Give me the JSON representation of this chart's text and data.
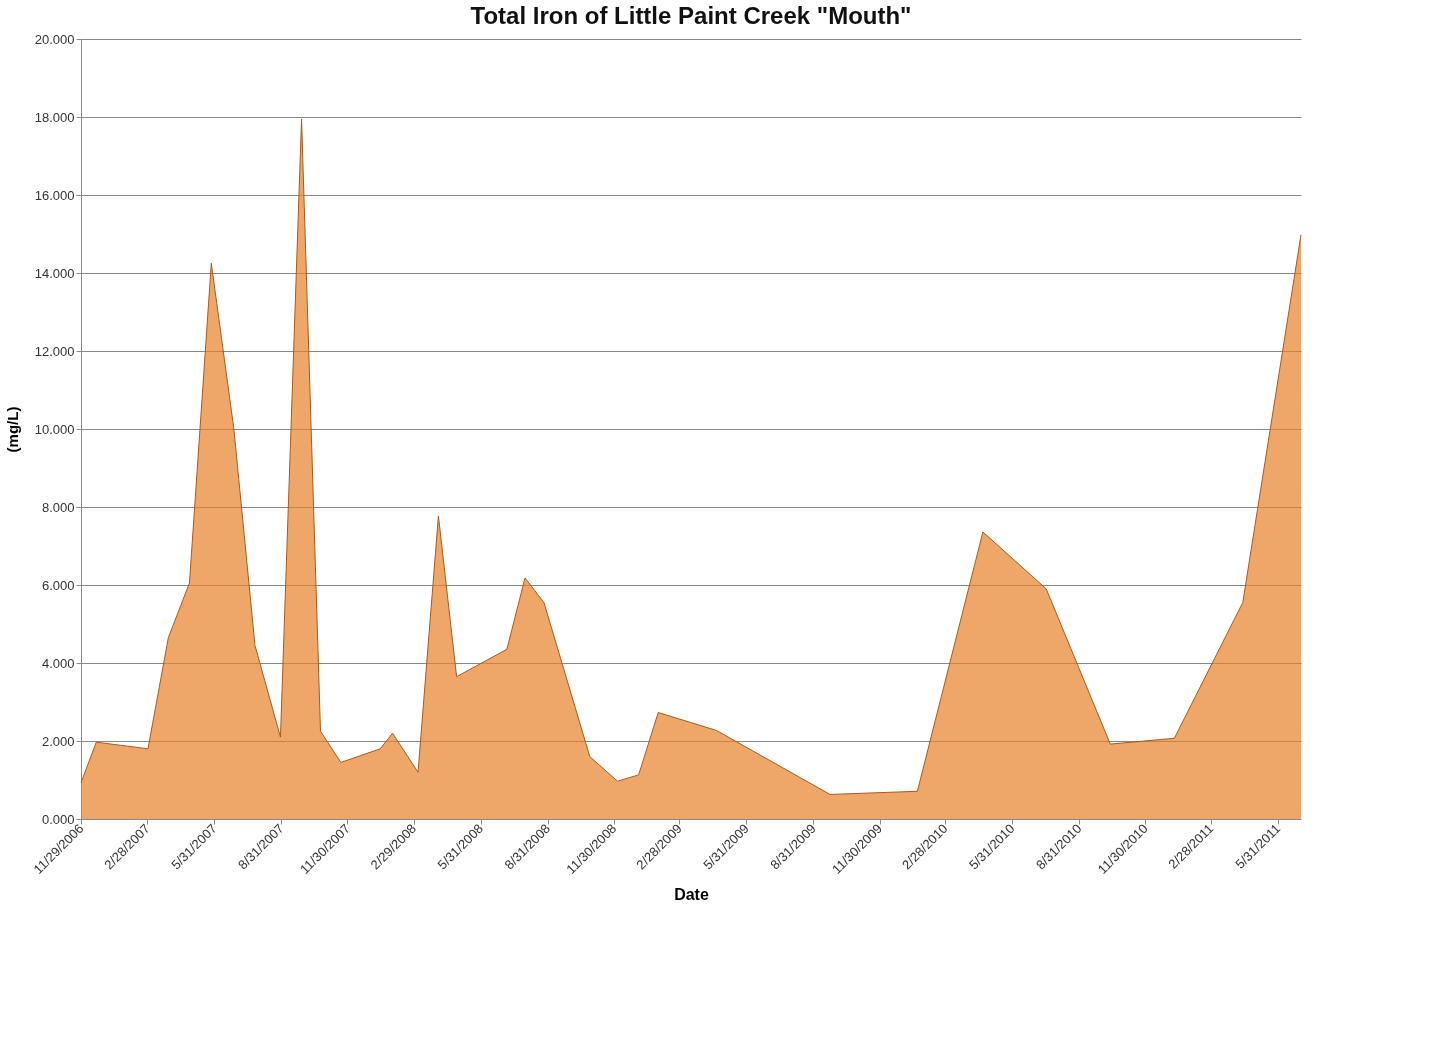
{
  "chart_data": {
    "type": "area",
    "title": "Total Iron of Little Paint Creek \"Mouth\"",
    "xlabel": "Date",
    "ylabel": "(mg/L)",
    "color": "#e8822a",
    "x": [
      "2006-11-29",
      "2006-12-20",
      "2007-03-01",
      "2007-03-29",
      "2007-04-27",
      "2007-05-27",
      "2007-06-27",
      "2007-07-26",
      "2007-08-30",
      "2007-09-28",
      "2007-10-24",
      "2007-11-21",
      "2008-01-14",
      "2008-01-31",
      "2008-03-06",
      "2008-04-03",
      "2008-04-28",
      "2008-07-06",
      "2008-07-31",
      "2008-08-26",
      "2008-10-28",
      "2008-12-05",
      "2009-01-03",
      "2009-01-30",
      "2009-04-20",
      "2009-09-23",
      "2010-01-21",
      "2010-04-21",
      "2010-07-17",
      "2010-10-13",
      "2011-01-09",
      "2011-04-13",
      "2011-07-02"
    ],
    "values": [
      0.93,
      1.97,
      1.8,
      4.65,
      6.05,
      14.25,
      10.0,
      4.45,
      2.1,
      17.95,
      2.25,
      1.45,
      1.8,
      2.2,
      1.2,
      7.77,
      3.65,
      4.35,
      6.18,
      5.55,
      1.6,
      0.97,
      1.13,
      2.73,
      2.27,
      0.63,
      0.71,
      7.36,
      5.9,
      1.92,
      2.07,
      5.55,
      14.98
    ],
    "xlim": [
      "2006-11-29",
      "2011-07-02"
    ],
    "xticks": [
      {
        "value": "2006-11-29",
        "label": "11/29/2006"
      },
      {
        "value": "2007-02-28",
        "label": "2/28/2007"
      },
      {
        "value": "2007-05-31",
        "label": "5/31/2007"
      },
      {
        "value": "2007-08-31",
        "label": "8/31/2007"
      },
      {
        "value": "2007-11-30",
        "label": "11/30/2007"
      },
      {
        "value": "2008-02-29",
        "label": "2/29/2008"
      },
      {
        "value": "2008-05-31",
        "label": "5/31/2008"
      },
      {
        "value": "2008-08-31",
        "label": "8/31/2008"
      },
      {
        "value": "2008-11-30",
        "label": "11/30/2008"
      },
      {
        "value": "2009-02-28",
        "label": "2/28/2009"
      },
      {
        "value": "2009-05-31",
        "label": "5/31/2009"
      },
      {
        "value": "2009-08-31",
        "label": "8/31/2009"
      },
      {
        "value": "2009-11-30",
        "label": "11/30/2009"
      },
      {
        "value": "2010-02-28",
        "label": "2/28/2010"
      },
      {
        "value": "2010-05-31",
        "label": "5/31/2010"
      },
      {
        "value": "2010-08-31",
        "label": "8/31/2010"
      },
      {
        "value": "2010-11-30",
        "label": "11/30/2010"
      },
      {
        "value": "2011-02-28",
        "label": "2/28/2011"
      },
      {
        "value": "2011-05-31",
        "label": "5/31/2011"
      }
    ],
    "ylim": [
      0,
      20
    ],
    "yticks": [
      {
        "value": 0,
        "label": "0.000"
      },
      {
        "value": 2,
        "label": "2.000"
      },
      {
        "value": 4,
        "label": "4.000"
      },
      {
        "value": 6,
        "label": "6.000"
      },
      {
        "value": 8,
        "label": "8.000"
      },
      {
        "value": 10,
        "label": "10.000"
      },
      {
        "value": 12,
        "label": "12.000"
      },
      {
        "value": 14,
        "label": "14.000"
      },
      {
        "value": 16,
        "label": "16.000"
      },
      {
        "value": 18,
        "label": "18.000"
      },
      {
        "value": 20,
        "label": "20.000"
      }
    ],
    "grid": "y"
  }
}
